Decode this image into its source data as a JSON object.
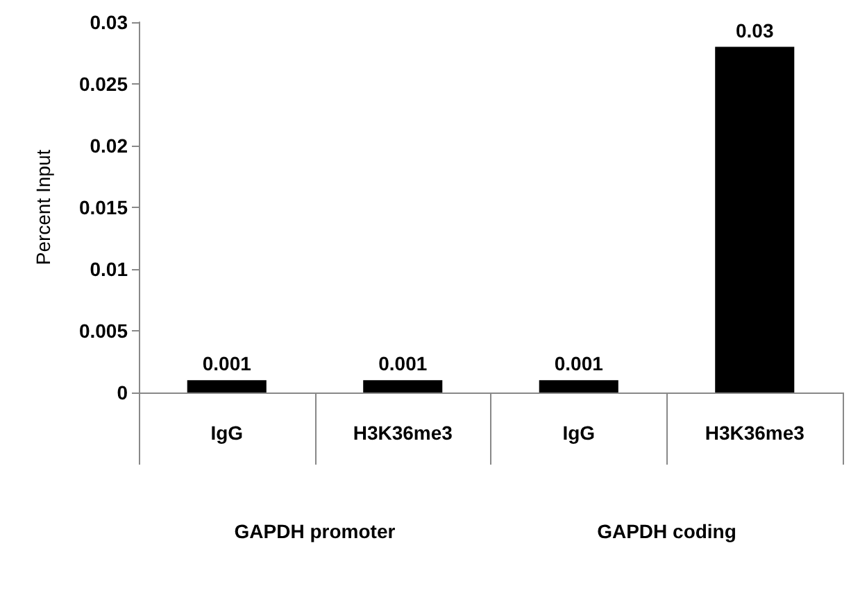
{
  "chart_data": {
    "type": "bar",
    "ylabel": "Percent Input",
    "categories": [
      "IgG",
      "H3K36me3",
      "IgG",
      "H3K36me3"
    ],
    "values": [
      0.001,
      0.001,
      0.001,
      0.028
    ],
    "value_labels": [
      "0.001",
      "0.001",
      "0.001",
      "0.03"
    ],
    "color": "#000000",
    "ylim": [
      0,
      0.03
    ],
    "yticks": [
      0,
      0.005,
      0.01,
      0.015,
      0.02,
      0.025,
      0.03
    ],
    "annotations": [
      "GAPDH promoter",
      "GAPDH coding"
    ]
  }
}
